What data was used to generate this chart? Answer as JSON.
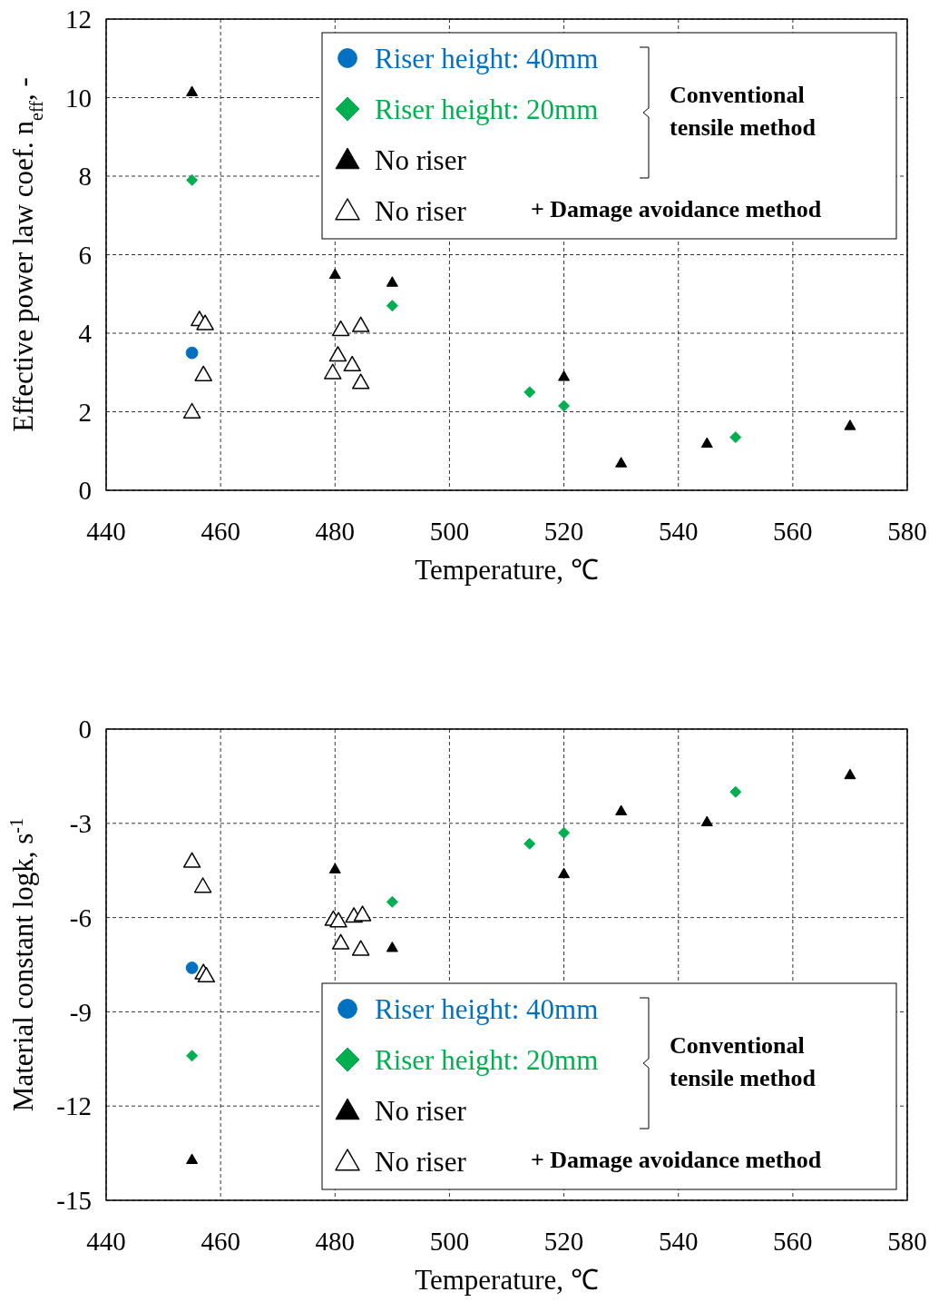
{
  "chart_data": [
    {
      "type": "scatter",
      "xlabel": "Temperature, ℃",
      "ylabel": "Effective power law coef. n$_{eff}$, -",
      "xlim": [
        440,
        580
      ],
      "xticks": [
        440,
        460,
        480,
        500,
        520,
        540,
        560,
        580
      ],
      "ylim": [
        0,
        12
      ],
      "yticks": [
        0,
        2,
        4,
        6,
        8,
        10,
        12
      ],
      "grid": true,
      "legend": "top right",
      "annotations": [
        "Conventional tensile method",
        "+ Damage avoidance method"
      ],
      "series": [
        {
          "name": "Riser height:  40mm",
          "color": "#0070c0",
          "marker": "circle",
          "x": [
            455
          ],
          "values": [
            3.5
          ]
        },
        {
          "name": "Riser height:  20mm",
          "color": "#00b050",
          "marker": "diamond",
          "x": [
            455,
            490,
            514,
            520,
            550
          ],
          "values": [
            7.9,
            4.7,
            2.5,
            2.15,
            1.35
          ]
        },
        {
          "name": "No riser",
          "color": "#000000",
          "marker": "triangle",
          "x": [
            455,
            480,
            490,
            520,
            530,
            545,
            570
          ],
          "values": [
            10.15,
            5.5,
            5.3,
            2.9,
            0.7,
            1.2,
            1.65
          ]
        },
        {
          "name": "No riser",
          "color": "#ffffff",
          "marker": "triangle",
          "x": [
            455,
            456.3,
            457.3,
            457,
            479.6,
            480.5,
            481,
            483,
            484.5,
            484.5
          ],
          "values": [
            2.0,
            4.35,
            4.25,
            2.95,
            3.0,
            3.45,
            4.1,
            3.2,
            2.75,
            4.2
          ]
        }
      ]
    },
    {
      "type": "scatter",
      "xlabel": "Temperature, ℃",
      "ylabel": "Material constant  log$_{}$k, s$^{-1}$",
      "xlim": [
        440,
        580
      ],
      "xticks": [
        440,
        460,
        480,
        500,
        520,
        540,
        560,
        580
      ],
      "ylim": [
        -15,
        0
      ],
      "yticks": [
        -15,
        -12,
        -9,
        -6,
        -3,
        0
      ],
      "grid": true,
      "legend": "bottom right",
      "annotations": [
        "Conventional tensile method",
        "+ Damage avoidance method"
      ],
      "series": [
        {
          "name": "Riser height:  40mm",
          "color": "#0070c0",
          "marker": "circle",
          "x": [
            455
          ],
          "values": [
            -7.6
          ]
        },
        {
          "name": "Riser height:  20mm",
          "color": "#00b050",
          "marker": "diamond",
          "x": [
            455,
            490,
            514,
            520,
            550
          ],
          "values": [
            -10.4,
            -5.5,
            -3.65,
            -3.3,
            -2.0
          ]
        },
        {
          "name": "No riser",
          "color": "#000000",
          "marker": "triangle",
          "x": [
            455,
            480,
            490,
            520,
            530,
            545,
            570
          ],
          "values": [
            -13.7,
            -4.45,
            -6.95,
            -4.6,
            -2.6,
            -2.95,
            -1.45
          ]
        },
        {
          "name": "No riser",
          "color": "#ffffff",
          "marker": "triangle",
          "x": [
            455,
            456.9,
            457,
            457.5,
            479.7,
            480.6,
            481,
            483.3,
            484.8,
            484.5
          ],
          "values": [
            -4.2,
            -5.0,
            -7.75,
            -7.85,
            -6.05,
            -6.1,
            -6.8,
            -5.95,
            -5.9,
            -7.0
          ]
        }
      ]
    }
  ]
}
